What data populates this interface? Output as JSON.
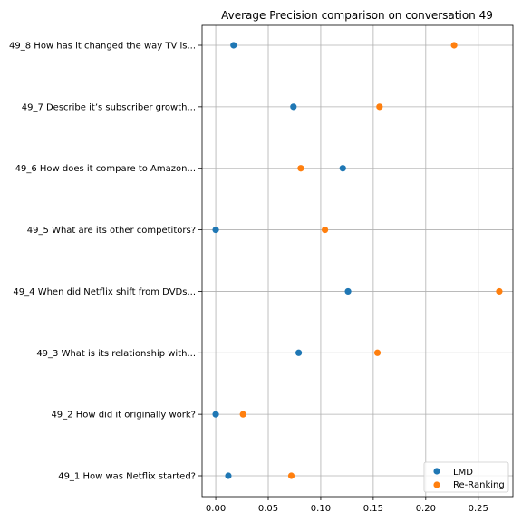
{
  "chart_data": {
    "type": "scatter",
    "title": "Average Precision comparison on conversation 49",
    "xlabel": "",
    "ylabel": "",
    "xlim": [
      -0.013,
      0.283
    ],
    "xticks": [
      "0.00",
      "0.05",
      "0.10",
      "0.15",
      "0.20",
      "0.25"
    ],
    "xtick_values": [
      0.0,
      0.05,
      0.1,
      0.15,
      0.2,
      0.25
    ],
    "categories": [
      "49_1 How was Netflix started?",
      "49_2 How did it originally work?",
      "49_3 What is its relationship with...",
      "49_4 When did Netflix shift from DVDs...",
      "49_5 What are its other competitors?",
      "49_6 How does it compare to Amazon...",
      "49_7 Describe it’s subscriber growth...",
      "49_8 How has it changed the way TV is..."
    ],
    "grid": true,
    "legend_position": "lower-right",
    "series": [
      {
        "name": "LMD",
        "color": "#1f77b4",
        "values": [
          0.012,
          0.0,
          0.079,
          0.126,
          0.0,
          0.121,
          0.074,
          0.017
        ]
      },
      {
        "name": "Re-Ranking",
        "color": "#ff7f0e",
        "values": [
          0.072,
          0.026,
          0.154,
          0.27,
          0.104,
          0.081,
          0.156,
          0.227
        ]
      }
    ]
  }
}
